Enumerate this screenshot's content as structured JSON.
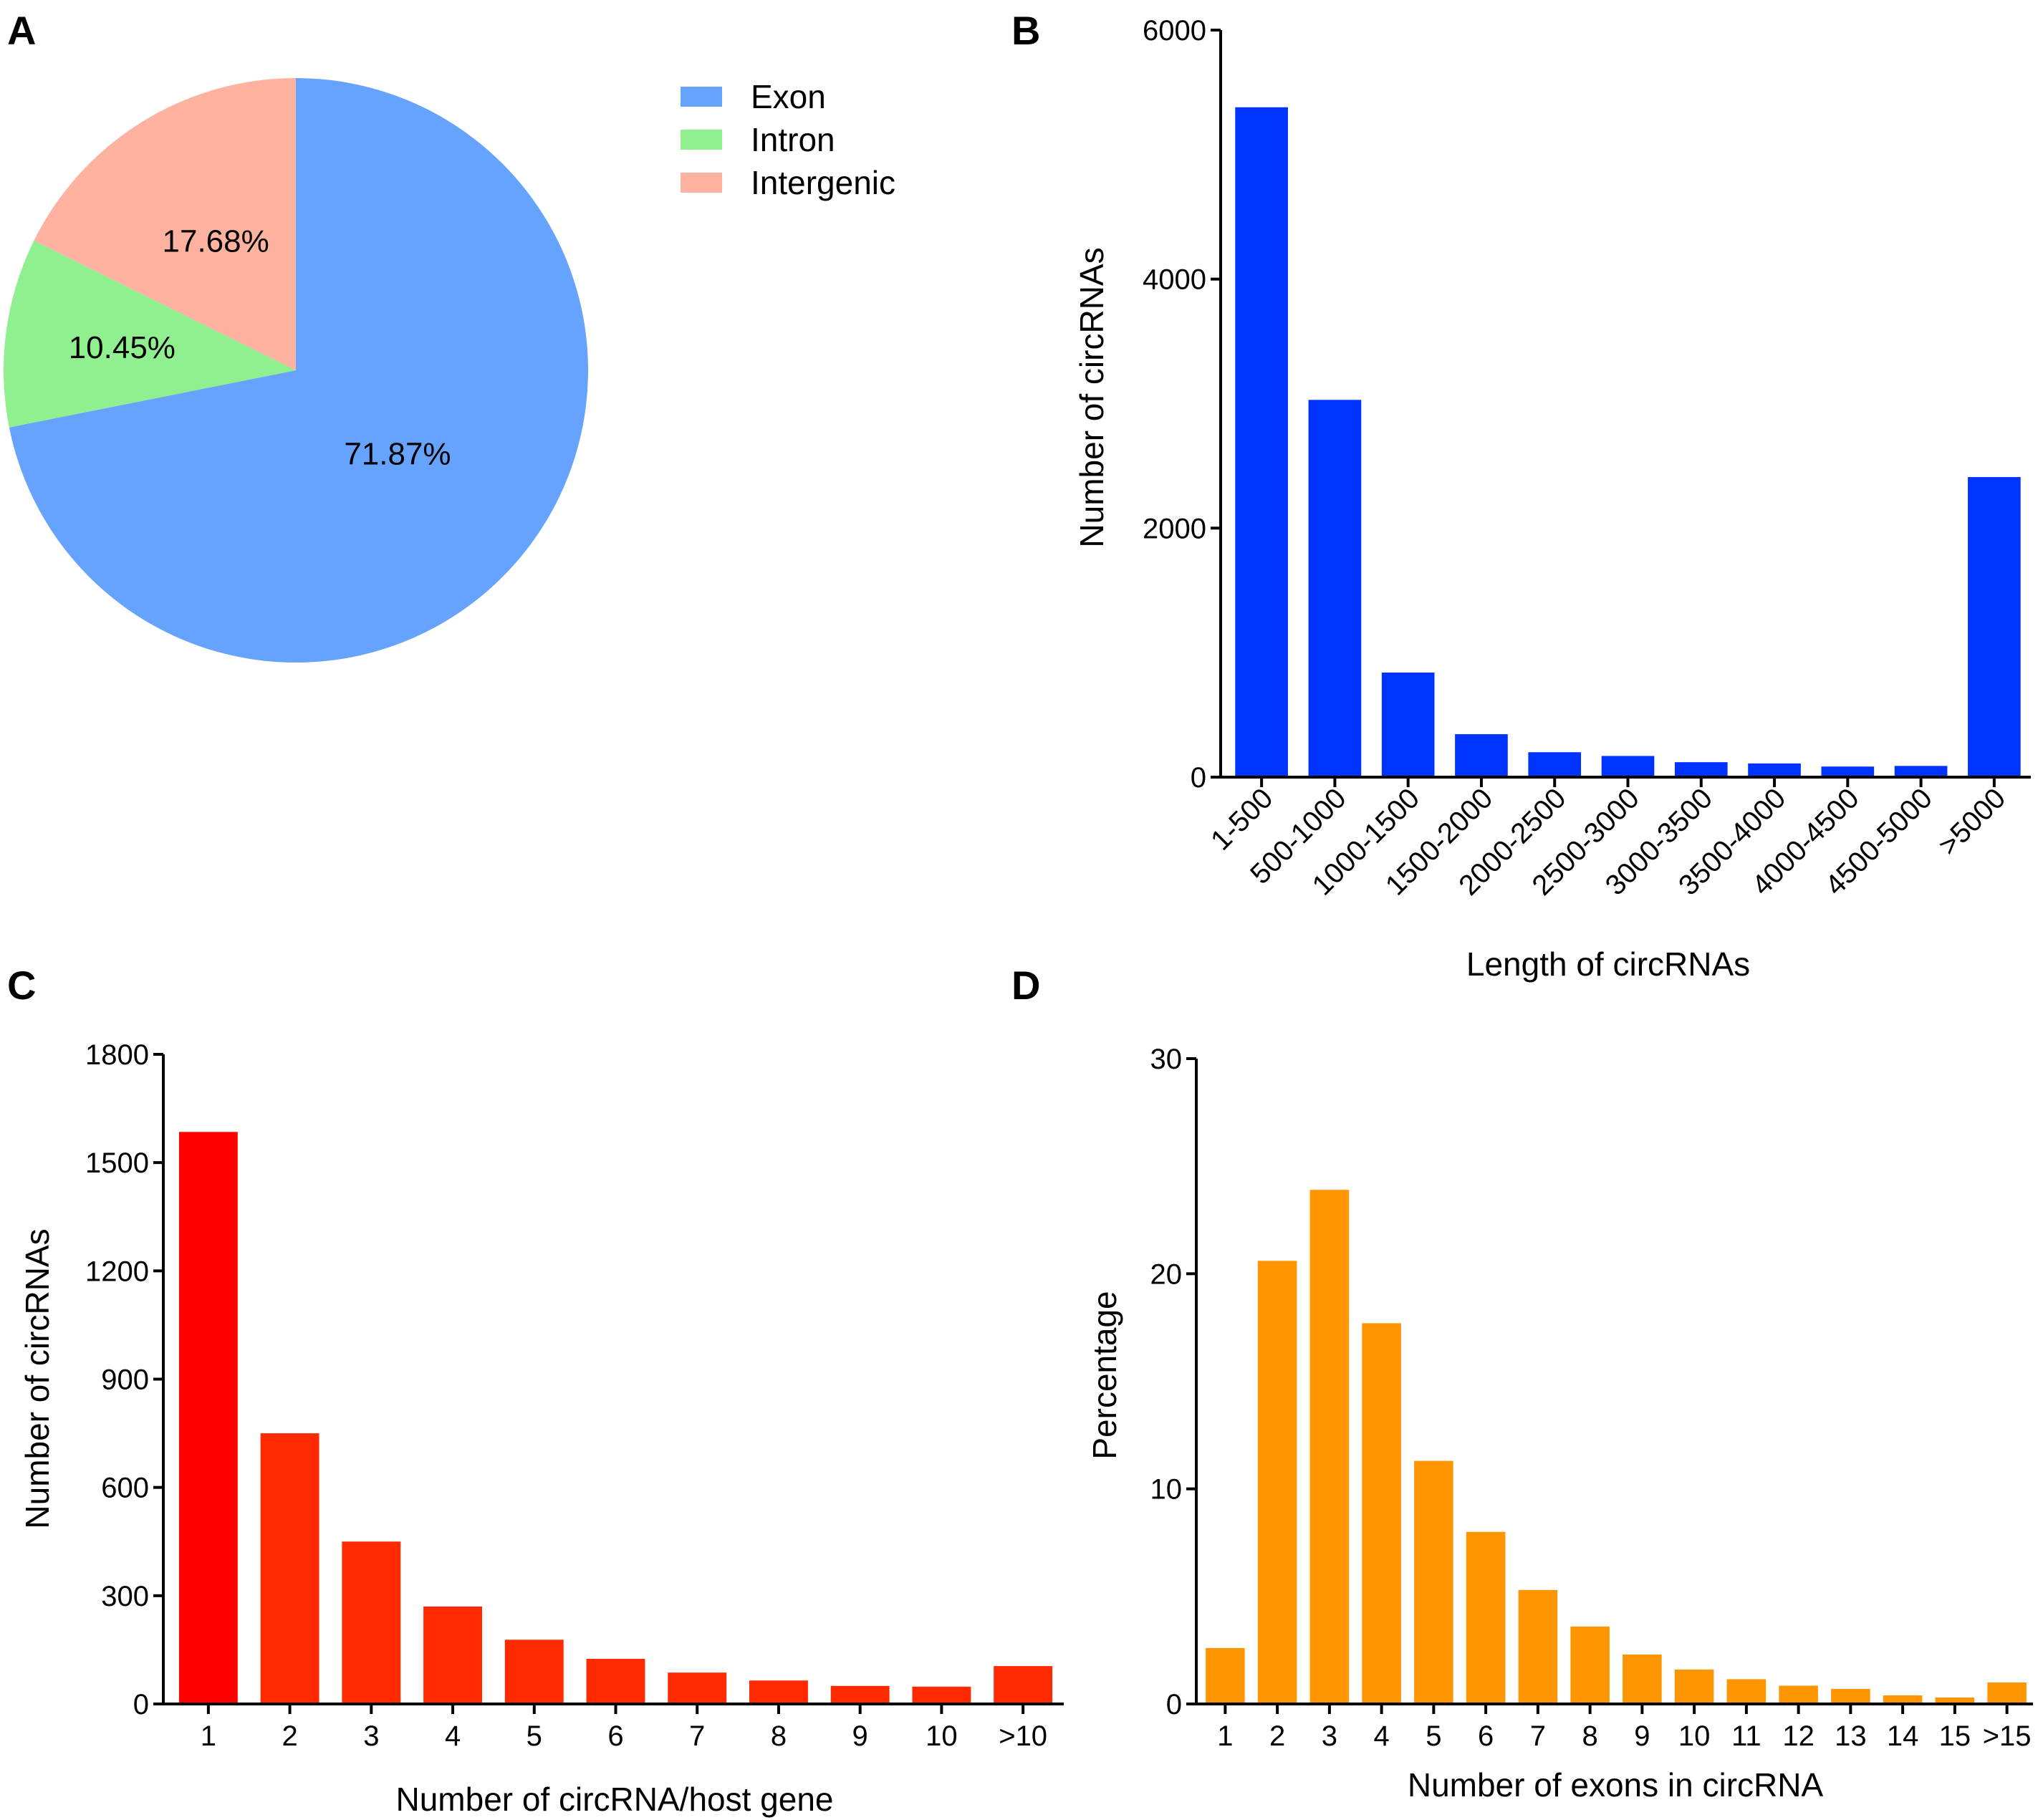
{
  "panel_labels": [
    "A",
    "B",
    "C",
    "D"
  ],
  "chart_data": [
    {
      "panel": "A",
      "type": "pie",
      "labels": [
        "Exon",
        "Intron",
        "Intergenic"
      ],
      "values": [
        71.87,
        10.45,
        17.68
      ],
      "value_labels": [
        "71.87%",
        "10.45%",
        "17.68%"
      ],
      "colors": [
        "#66a3ff",
        "#90f090",
        "#ffb2a0"
      ],
      "legend": "right"
    },
    {
      "panel": "B",
      "type": "bar",
      "categories": [
        "1-500",
        "500-1000",
        "1000-1500",
        "1500-2000",
        "2000-2500",
        "2500-3000",
        "3000-3500",
        "3500-4000",
        "4000-4500",
        "4500-5000",
        ">5000"
      ],
      "values": [
        5380,
        3030,
        840,
        345,
        200,
        170,
        120,
        110,
        85,
        90,
        2410
      ],
      "xlabel": "Length of circRNAs",
      "ylabel": "Number  of  circRNAs",
      "ylim": [
        0,
        6000
      ],
      "yticks": [
        0,
        2000,
        4000,
        6000
      ],
      "ytick_labels": [
        "0",
        "2000",
        "4000",
        "6000"
      ],
      "color": "#0033ff"
    },
    {
      "panel": "C",
      "type": "bar",
      "categories": [
        "1",
        "2",
        "3",
        "4",
        "5",
        "6",
        "7",
        "8",
        "9",
        "10",
        ">10"
      ],
      "values": [
        1585,
        750,
        450,
        270,
        178,
        125,
        87,
        65,
        50,
        48,
        105
      ],
      "xlabel": "Number of circRNA/host gene",
      "ylabel": "Number  of  circRNAs",
      "ylim": [
        0,
        1800
      ],
      "yticks": [
        0,
        300,
        600,
        900,
        1200,
        1500,
        1800
      ],
      "ytick_labels": [
        "0",
        "300",
        "600",
        "900",
        "1200",
        "1500",
        "1800"
      ],
      "colors": [
        "#ff0000",
        "#ff2a00",
        "#ff2a00",
        "#ff2a00",
        "#ff2a00",
        "#ff2a00",
        "#ff2a00",
        "#ff2a00",
        "#ff2a00",
        "#ff2a00",
        "#ff2a00"
      ]
    },
    {
      "panel": "D",
      "type": "bar",
      "categories": [
        "1",
        "2",
        "3",
        "4",
        "5",
        "6",
        "7",
        "8",
        "9",
        "10",
        "11",
        "12",
        "13",
        "14",
        "15",
        ">15"
      ],
      "values": [
        2.6,
        20.6,
        23.9,
        17.7,
        11.3,
        8.0,
        5.3,
        3.6,
        2.3,
        1.6,
        1.15,
        0.85,
        0.7,
        0.4,
        0.3,
        1.0
      ],
      "xlabel": "Number of exons in circRNA",
      "ylabel": "Percentage",
      "ylim": [
        0,
        30
      ],
      "yticks": [
        0,
        10,
        20,
        30
      ],
      "ytick_labels": [
        "0",
        "10",
        "20",
        "30"
      ],
      "color": "#ff9500"
    }
  ]
}
